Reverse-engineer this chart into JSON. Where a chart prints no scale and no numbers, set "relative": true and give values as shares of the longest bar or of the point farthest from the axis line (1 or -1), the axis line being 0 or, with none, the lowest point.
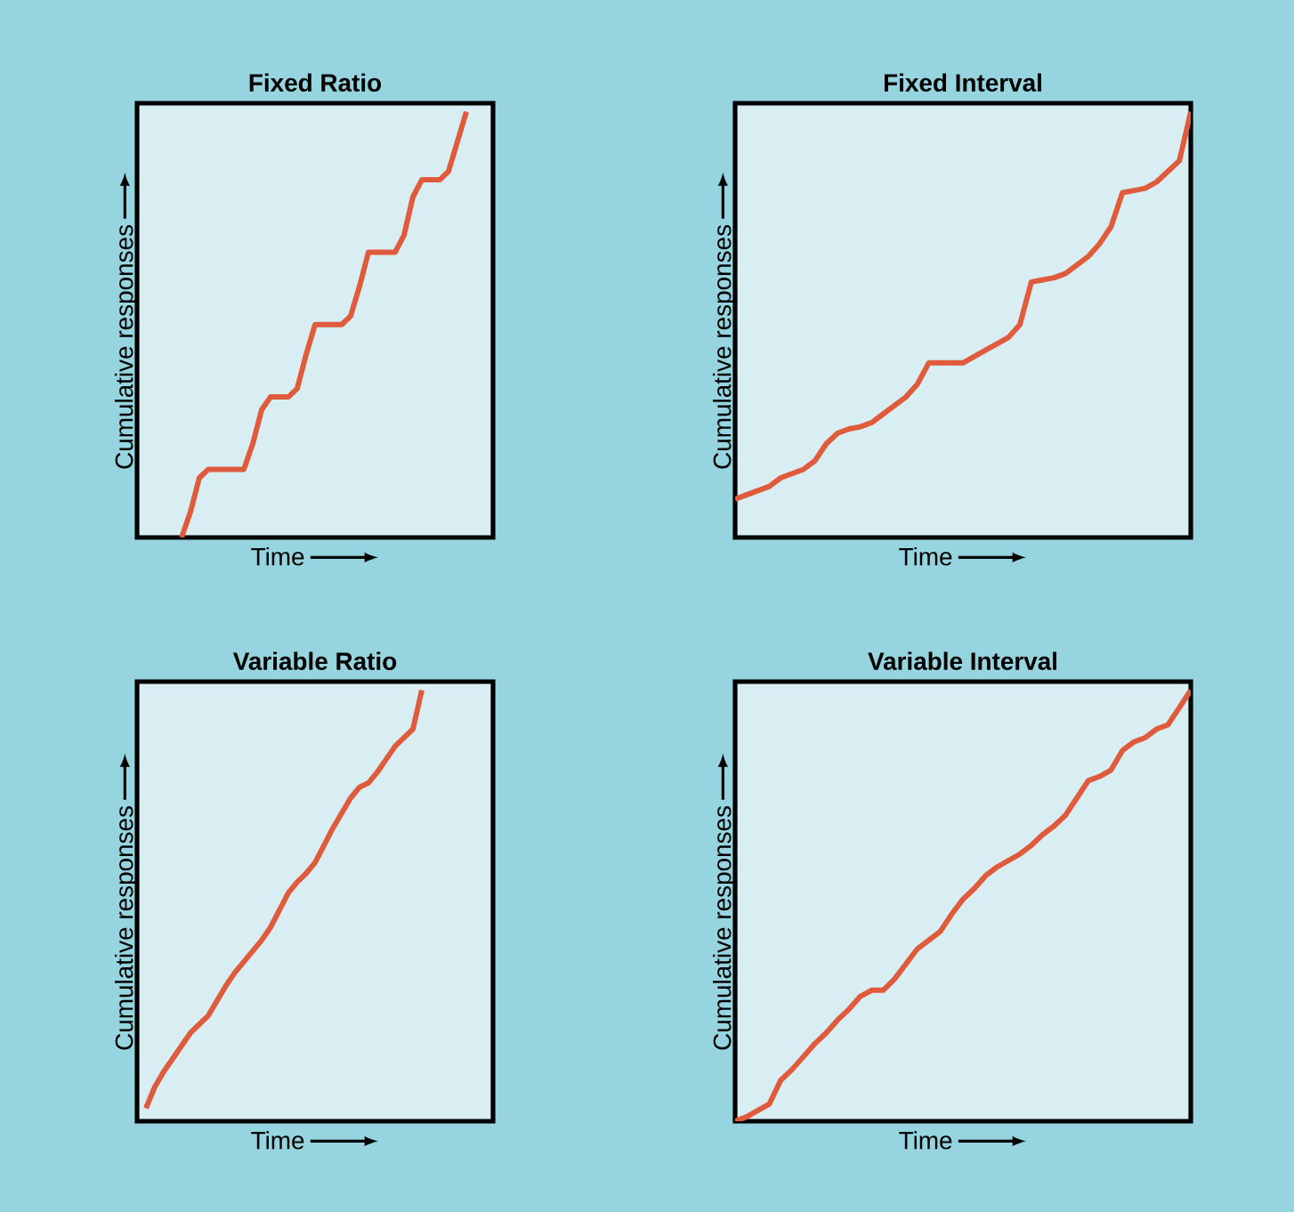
{
  "chart_data": [
    {
      "type": "line",
      "title": "Fixed Ratio",
      "xlabel": "Time",
      "ylabel": "Cumulative responses",
      "relative": true,
      "tick_labels": false,
      "color": "#e05a3c",
      "categories": [
        null,
        null,
        null,
        null,
        null,
        null,
        null,
        null,
        null,
        null,
        null,
        null,
        null,
        null,
        null,
        null,
        null,
        null,
        null,
        null,
        null,
        null,
        null,
        null,
        null,
        null,
        null,
        null,
        null,
        null,
        null,
        null,
        null,
        null,
        null,
        null,
        null,
        null,
        null,
        null,
        null
      ],
      "values": [
        null,
        null,
        null,
        null,
        null,
        0,
        0.06,
        0.14,
        0.16,
        0.16,
        0.16,
        0.16,
        0.16,
        0.22,
        0.3,
        0.33,
        0.33,
        0.33,
        0.35,
        0.43,
        0.5,
        0.5,
        0.5,
        0.5,
        0.52,
        0.59,
        0.67,
        0.67,
        0.67,
        0.67,
        0.71,
        0.8,
        0.84,
        0.84,
        0.84,
        0.86,
        0.93,
        1,
        null,
        null,
        null
      ]
    },
    {
      "type": "line",
      "title": "Fixed Interval",
      "xlabel": "Time",
      "ylabel": "Cumulative responses",
      "relative": true,
      "tick_labels": false,
      "color": "#e05a3c",
      "categories": [
        null,
        null,
        null,
        null,
        null,
        null,
        null,
        null,
        null,
        null,
        null,
        null,
        null,
        null,
        null,
        null,
        null,
        null,
        null,
        null,
        null,
        null,
        null,
        null,
        null,
        null,
        null,
        null,
        null,
        null,
        null,
        null,
        null,
        null,
        null,
        null,
        null,
        null,
        null,
        null,
        null
      ],
      "values": [
        0.09,
        0.1,
        0.11,
        0.12,
        0.14,
        0.15,
        0.16,
        0.18,
        0.22,
        0.245,
        0.255,
        0.26,
        0.27,
        0.29,
        0.31,
        0.33,
        0.36,
        0.41,
        0.41,
        0.41,
        0.41,
        0.425,
        0.44,
        0.455,
        0.47,
        0.5,
        0.6,
        0.605,
        0.61,
        0.62,
        0.64,
        0.66,
        0.69,
        0.73,
        0.81,
        0.815,
        0.82,
        0.835,
        0.86,
        0.885,
        1
      ]
    },
    {
      "type": "line",
      "title": "Variable Ratio",
      "xlabel": "Time",
      "ylabel": "Cumulative responses",
      "relative": true,
      "tick_labels": false,
      "color": "#e05a3c",
      "categories": [
        null,
        null,
        null,
        null,
        null,
        null,
        null,
        null,
        null,
        null,
        null,
        null,
        null,
        null,
        null,
        null,
        null,
        null,
        null,
        null,
        null,
        null,
        null,
        null,
        null,
        null,
        null,
        null,
        null,
        null,
        null,
        null,
        null,
        null,
        null,
        null,
        null,
        null,
        null,
        null,
        null
      ],
      "values": [
        null,
        0.03,
        0.08,
        0.115,
        0.145,
        0.175,
        0.205,
        0.225,
        0.245,
        0.28,
        0.315,
        0.345,
        0.37,
        0.395,
        0.42,
        0.45,
        0.49,
        0.53,
        0.555,
        0.575,
        0.6,
        0.64,
        0.68,
        0.715,
        0.75,
        0.775,
        0.785,
        0.81,
        0.84,
        0.87,
        0.89,
        0.91,
        1,
        null,
        null,
        null,
        null,
        null,
        null,
        null,
        null
      ]
    },
    {
      "type": "line",
      "title": "Variable Interval",
      "xlabel": "Time",
      "ylabel": "Cumulative responses",
      "relative": true,
      "tick_labels": false,
      "color": "#e05a3c",
      "categories": [
        null,
        null,
        null,
        null,
        null,
        null,
        null,
        null,
        null,
        null,
        null,
        null,
        null,
        null,
        null,
        null,
        null,
        null,
        null,
        null,
        null,
        null,
        null,
        null,
        null,
        null,
        null,
        null,
        null,
        null,
        null,
        null,
        null,
        null,
        null,
        null,
        null,
        null,
        null,
        null,
        null
      ],
      "values": [
        0,
        0.01,
        0.025,
        0.04,
        0.095,
        0.12,
        0.15,
        0.18,
        0.205,
        0.235,
        0.26,
        0.29,
        0.304,
        0.304,
        0.33,
        0.365,
        0.4,
        0.42,
        0.44,
        0.48,
        0.515,
        0.54,
        0.57,
        0.59,
        0.605,
        0.62,
        0.64,
        0.665,
        0.685,
        0.71,
        0.75,
        0.79,
        0.8,
        0.815,
        0.86,
        0.88,
        0.89,
        0.91,
        0.92,
        0.96,
        1
      ]
    }
  ]
}
